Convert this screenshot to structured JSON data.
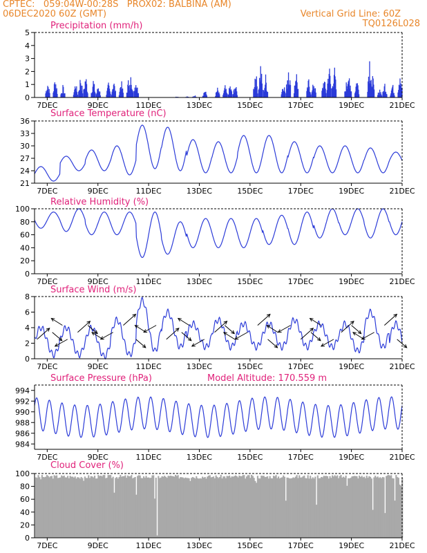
{
  "header": {
    "line1_left": "CPTEC:   059:04W-00:28S   PROX02: BALBINA (AM)",
    "line2_left": "06DEC2020 60Z (GMT)",
    "line2_right": "Vertical Grid Line: 60Z",
    "line3_right": "TQ0126L028"
  },
  "colors": {
    "header": "#e8862a",
    "title": "#e0217a",
    "line": "#2b3bd8",
    "bar": "#2b3bd8",
    "cloud": "#a9a9a9",
    "arrow": "#000000"
  },
  "x_ticks": [
    "7DEC",
    "9DEC",
    "11DEC",
    "13DEC",
    "15DEC",
    "17DEC",
    "19DEC",
    "21DEC"
  ],
  "chart_data": [
    {
      "type": "bar",
      "title": "Precipitation (mm/h)",
      "ylim": [
        0,
        5
      ],
      "yticks": [
        0,
        1,
        2,
        3,
        4,
        5
      ],
      "x_days": [
        6.5,
        21
      ],
      "bursts": [
        [
          7.0,
          1.4
        ],
        [
          7.3,
          1.8
        ],
        [
          7.6,
          1.0
        ],
        [
          8.1,
          1.3
        ],
        [
          8.3,
          1.9
        ],
        [
          8.5,
          2.0
        ],
        [
          8.8,
          1.6
        ],
        [
          9.0,
          1.1
        ],
        [
          9.4,
          1.2
        ],
        [
          9.6,
          1.6
        ],
        [
          9.9,
          1.5
        ],
        [
          10.2,
          1.7
        ],
        [
          10.3,
          2.1
        ],
        [
          10.5,
          1.7
        ],
        [
          12.1,
          0.1
        ],
        [
          12.5,
          0.1
        ],
        [
          12.8,
          0.2
        ],
        [
          13.2,
          0.7
        ],
        [
          13.7,
          0.8
        ],
        [
          14.0,
          1.0
        ],
        [
          14.2,
          1.1
        ],
        [
          14.4,
          1.2
        ],
        [
          15.2,
          2.5
        ],
        [
          15.4,
          2.9
        ],
        [
          15.6,
          1.9
        ],
        [
          16.3,
          1.4
        ],
        [
          16.5,
          3.2
        ],
        [
          16.8,
          2.6
        ],
        [
          17.3,
          1.6
        ],
        [
          17.5,
          1.5
        ],
        [
          17.9,
          1.8
        ],
        [
          18.1,
          3.0
        ],
        [
          18.3,
          2.9
        ],
        [
          18.8,
          1.5
        ],
        [
          18.9,
          2.1
        ],
        [
          19.2,
          1.8
        ],
        [
          19.7,
          3.7
        ],
        [
          19.8,
          2.2
        ],
        [
          20.1,
          0.8
        ],
        [
          20.3,
          1.3
        ],
        [
          20.6,
          1.2
        ],
        [
          20.9,
          2.6
        ]
      ]
    },
    {
      "type": "line",
      "title": "Surface Temperature (nC)",
      "ylim": [
        21,
        36
      ],
      "yticks": [
        21,
        24,
        27,
        30,
        33,
        36
      ],
      "x_days": [
        6.5,
        21
      ],
      "daily_min": [
        21.5,
        24.0,
        24.0,
        23.0,
        24.5,
        24.0,
        23.5,
        23.5,
        23.5,
        23.5,
        23.5,
        23.5,
        23.5,
        23.5,
        24.5
      ],
      "daily_max": [
        25.0,
        27.5,
        29.0,
        30.0,
        35.0,
        34.5,
        31.5,
        31.0,
        32.5,
        32.5,
        31.0,
        30.0,
        30.0,
        29.5,
        28.5
      ]
    },
    {
      "type": "line",
      "title": "Relative Humidity (%)",
      "ylim": [
        0,
        100
      ],
      "yticks": [
        0,
        20,
        40,
        60,
        80,
        100
      ],
      "x_days": [
        6.5,
        21
      ],
      "daily_min": [
        70,
        65,
        60,
        60,
        25,
        30,
        40,
        40,
        40,
        45,
        45,
        55,
        60,
        55,
        60
      ],
      "daily_max": [
        95,
        100,
        95,
        95,
        95,
        80,
        85,
        85,
        85,
        90,
        95,
        100,
        100,
        100,
        100
      ]
    },
    {
      "type": "line",
      "title": "Surface Wind (m/s)",
      "ylim": [
        0,
        8
      ],
      "yticks": [
        0,
        2,
        4,
        6,
        8
      ],
      "x_days": [
        6.5,
        21
      ],
      "daily_min": [
        0.5,
        0.5,
        0.3,
        0.5,
        1.0,
        1.5,
        1.5,
        1.5,
        1.5,
        1.5,
        1.5,
        1.5,
        1.0,
        1.5,
        0.3
      ],
      "daily_max": [
        4.0,
        4.0,
        4.0,
        5.0,
        7.5,
        6.0,
        4.5,
        5.0,
        4.5,
        4.5,
        5.0,
        4.5,
        4.5,
        6.0,
        4.5
      ],
      "arrows": [
        [
          6.6,
          0
        ],
        [
          7.2,
          1
        ],
        [
          7.6,
          2
        ],
        [
          7.8,
          3
        ],
        [
          8.2,
          0
        ],
        [
          8.6,
          1
        ],
        [
          9.2,
          2
        ],
        [
          9.6,
          3
        ],
        [
          10.0,
          0
        ],
        [
          10.5,
          1
        ],
        [
          10.9,
          2
        ],
        [
          11.3,
          3
        ],
        [
          11.7,
          0
        ],
        [
          12.3,
          1
        ],
        [
          12.6,
          2
        ],
        [
          13.2,
          3
        ],
        [
          13.6,
          0
        ],
        [
          14.0,
          1
        ],
        [
          14.4,
          2
        ],
        [
          14.9,
          3
        ],
        [
          15.3,
          0
        ],
        [
          15.7,
          1
        ],
        [
          16.1,
          2
        ],
        [
          16.6,
          3
        ],
        [
          17.0,
          0
        ],
        [
          17.4,
          1
        ],
        [
          17.8,
          2
        ],
        [
          18.3,
          3
        ],
        [
          18.6,
          0
        ],
        [
          19.0,
          1
        ],
        [
          19.5,
          2
        ],
        [
          19.9,
          3
        ],
        [
          20.3,
          0
        ],
        [
          20.8,
          1
        ]
      ]
    },
    {
      "type": "line",
      "title": "Surface Pressure (hPa)",
      "annotation": "Model Altitude: 170.559  m",
      "ylim": [
        983,
        995
      ],
      "yticks": [
        984,
        986,
        988,
        990,
        992,
        994
      ],
      "x_days": [
        6.5,
        21
      ],
      "semidiurnal": {
        "mean": 989.0,
        "amplitude": 3.0,
        "max_hour": 14
      }
    },
    {
      "type": "bar",
      "title": "Cloud Cover (%)",
      "ylim": [
        0,
        100
      ],
      "yticks": [
        0,
        20,
        40,
        60,
        80,
        100
      ],
      "x_days": [
        6.5,
        21
      ],
      "typical": 95,
      "dips": [
        [
          6.7,
          90
        ],
        [
          8.4,
          85
        ],
        [
          9.6,
          70
        ],
        [
          10.5,
          65
        ],
        [
          11.2,
          60
        ],
        [
          11.3,
          0
        ],
        [
          12.6,
          88
        ],
        [
          15.2,
          85
        ],
        [
          16.4,
          55
        ],
        [
          17.6,
          50
        ],
        [
          18.8,
          80
        ],
        [
          19.8,
          40
        ],
        [
          20.3,
          35
        ],
        [
          20.7,
          55
        ],
        [
          20.9,
          80
        ]
      ]
    }
  ]
}
